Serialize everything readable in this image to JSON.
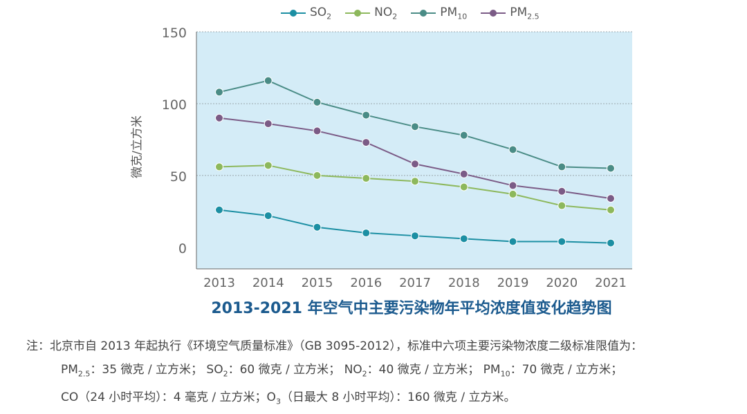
{
  "chart_data": {
    "type": "line",
    "title": "2013-2021 年空气中主要污染物年平均浓度值变化趋势图",
    "ylabel": "微克/立方米",
    "xlabel": "",
    "ylim": [
      -15,
      150
    ],
    "yticks": [
      0,
      50,
      100,
      150
    ],
    "grid": true,
    "legend_position": "top",
    "x": [
      "2013",
      "2014",
      "2015",
      "2016",
      "2017",
      "2018",
      "2019",
      "2020",
      "2021"
    ],
    "series": [
      {
        "name": "SO2",
        "color": "#1c8fa3",
        "values": [
          26,
          22,
          14,
          10,
          8,
          6,
          4,
          4,
          3
        ]
      },
      {
        "name": "NO2",
        "color": "#8db85c",
        "values": [
          56,
          57,
          50,
          48,
          46,
          42,
          37,
          29,
          26
        ]
      },
      {
        "name": "PM10",
        "color": "#4a8c86",
        "values": [
          108,
          116,
          101,
          92,
          84,
          78,
          68,
          56,
          55
        ]
      },
      {
        "name": "PM2.5",
        "color": "#7b5b86",
        "values": [
          90,
          86,
          81,
          73,
          58,
          51,
          43,
          39,
          34
        ]
      }
    ]
  },
  "legend": [
    {
      "base": "SO",
      "sub": "2",
      "color": "#1c8fa3"
    },
    {
      "base": "NO",
      "sub": "2",
      "color": "#8db85c"
    },
    {
      "base": "PM",
      "sub": "10",
      "color": "#4a8c86"
    },
    {
      "base": "PM",
      "sub": "2.5",
      "color": "#7b5b86"
    }
  ],
  "colors": {
    "plot_background": "#d4ecf7",
    "gridline": "#9aa7ad",
    "axis": "#666666",
    "title": "#1b5a8e"
  },
  "note": {
    "line1": "注：北京市自 2013 年起执行《环境空气质量标准》（GB 3095-2012），标准中六项主要污染物浓度二级标准限值为：",
    "line2": {
      "pm25_base": "PM",
      "pm25_sub": "2.5",
      "pm25_val": "：35 微克 / 立方米；",
      "so2_base": "SO",
      "so2_sub": "2",
      "so2_val": "：60 微克 / 立方米；",
      "no2_base": "NO",
      "no2_sub": "2",
      "no2_val": "：40 微克 / 立方米；",
      "pm10_base": "PM",
      "pm10_sub": "10",
      "pm10_val": "：70 微克 / 立方米；"
    },
    "line3": {
      "co": "CO（24 小时平均）：4 毫克 / 立方米；",
      "o3_base": "O",
      "o3_sub": "3",
      "o3_val": "（日最大 8 小时平均）：160 微克 / 立方米。"
    }
  }
}
